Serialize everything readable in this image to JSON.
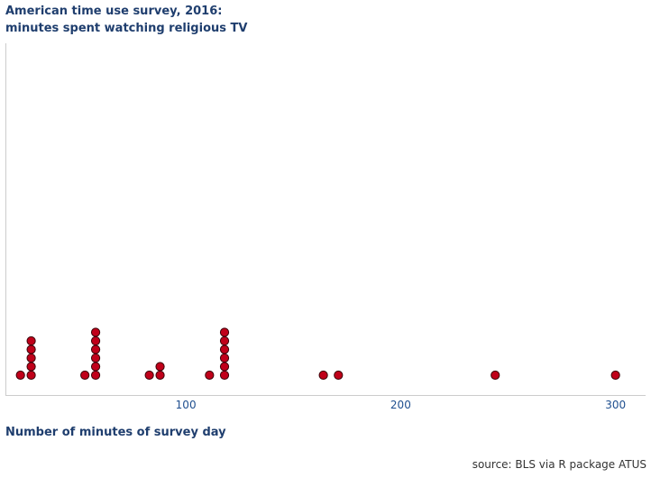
{
  "chart_data": {
    "type": "scatter",
    "subtype": "dot-plot",
    "title_line1": "American time use survey, 2016:",
    "title_line2": "minutes spent watching religious TV",
    "xlabel": "Number of minutes of survey day",
    "ylabel": "",
    "xlim": [
      16,
      314
    ],
    "xticks": [
      100,
      200,
      300
    ],
    "source": "source: BLS via R package ATUS",
    "dot_color": "#c0001a",
    "axis_color": "#cccccc",
    "text_color": "#1f3e6e",
    "stacks": [
      {
        "x": 23,
        "count": 1
      },
      {
        "x": 28,
        "count": 5
      },
      {
        "x": 53,
        "count": 1
      },
      {
        "x": 58,
        "count": 6
      },
      {
        "x": 83,
        "count": 1
      },
      {
        "x": 88,
        "count": 2
      },
      {
        "x": 111,
        "count": 1
      },
      {
        "x": 118,
        "count": 6
      },
      {
        "x": 164,
        "count": 1
      },
      {
        "x": 171,
        "count": 1
      },
      {
        "x": 244,
        "count": 1
      },
      {
        "x": 300,
        "count": 1
      }
    ]
  }
}
